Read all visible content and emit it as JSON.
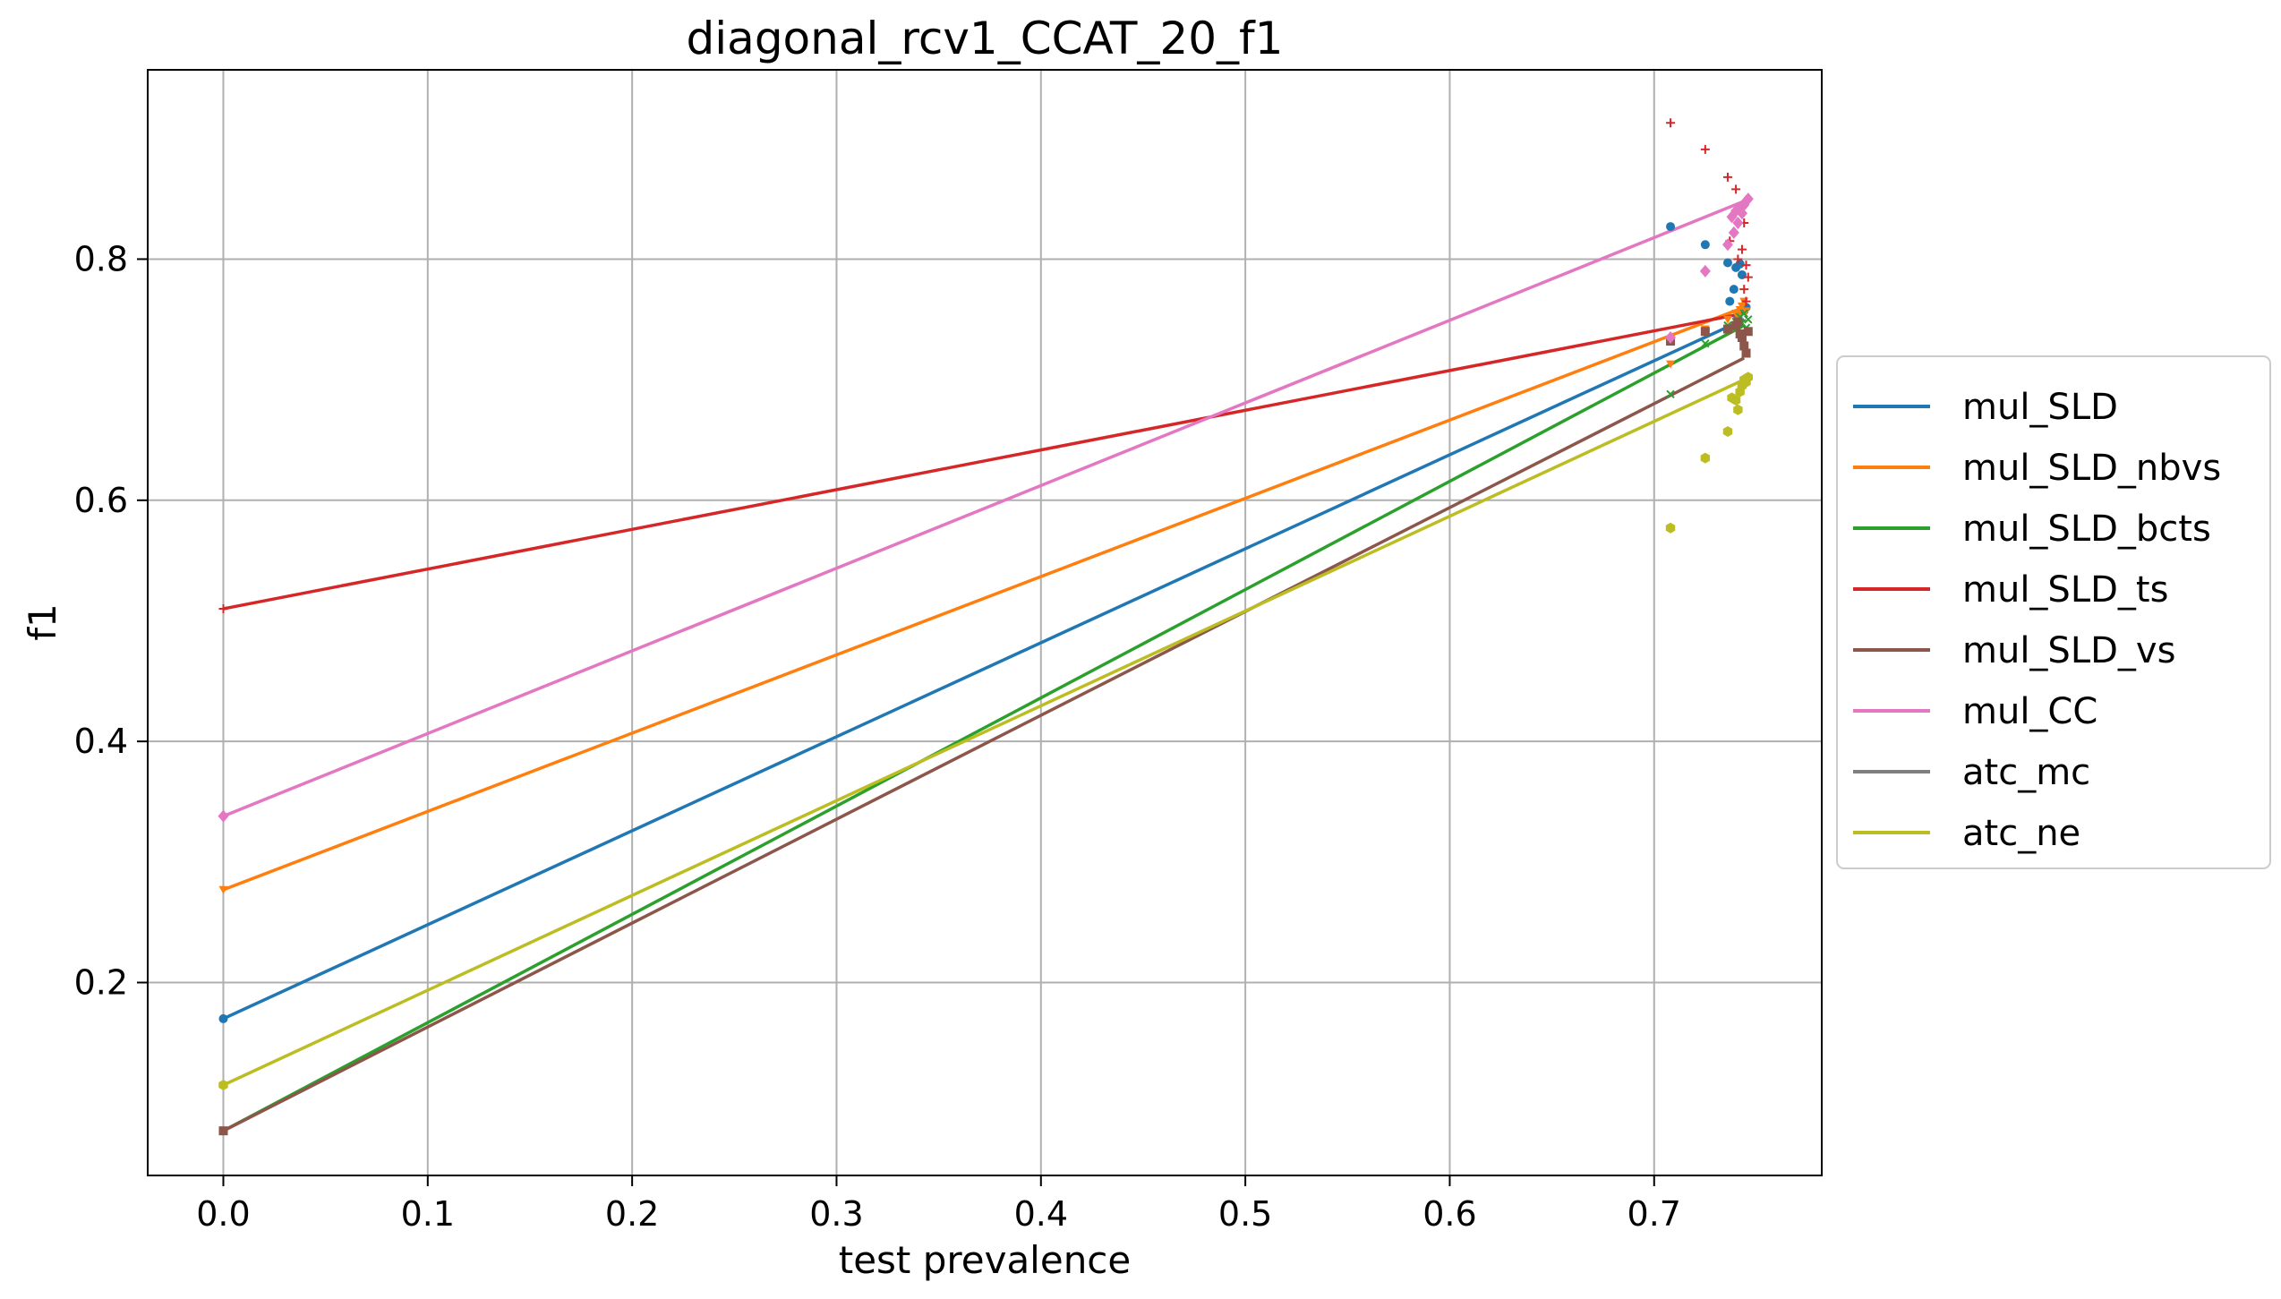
{
  "chart_data": {
    "type": "line",
    "title": "diagonal_rcv1_CCAT_20_f1",
    "xlabel": "test prevalence",
    "ylabel": "f1",
    "xlim": [
      -0.037,
      0.782
    ],
    "ylim": [
      0.04,
      0.957
    ],
    "xticks": [
      {
        "value": 0.0,
        "label": "0.0"
      },
      {
        "value": 0.1,
        "label": "0.1"
      },
      {
        "value": 0.2,
        "label": "0.2"
      },
      {
        "value": 0.3,
        "label": "0.3"
      },
      {
        "value": 0.4,
        "label": "0.4"
      },
      {
        "value": 0.5,
        "label": "0.5"
      },
      {
        "value": 0.6,
        "label": "0.6"
      },
      {
        "value": 0.7,
        "label": "0.7"
      }
    ],
    "yticks": [
      {
        "value": 0.2,
        "label": "0.2"
      },
      {
        "value": 0.4,
        "label": "0.4"
      },
      {
        "value": 0.6,
        "label": "0.6"
      },
      {
        "value": 0.8,
        "label": "0.8"
      }
    ],
    "grid": true,
    "legend_position": "center-right-outside",
    "series": [
      {
        "name": "mul_SLD",
        "color": "#1f77b4",
        "marker": "circle",
        "line": [
          [
            0.0,
            0.17
          ],
          [
            0.744,
            0.75
          ]
        ],
        "points": [
          [
            0.0,
            0.17
          ],
          [
            0.708,
            0.827
          ],
          [
            0.725,
            0.812
          ],
          [
            0.736,
            0.797
          ],
          [
            0.74,
            0.793
          ],
          [
            0.742,
            0.796
          ],
          [
            0.739,
            0.775
          ],
          [
            0.737,
            0.765
          ],
          [
            0.743,
            0.787
          ],
          [
            0.744,
            0.757
          ],
          [
            0.741,
            0.752
          ],
          [
            0.745,
            0.76
          ]
        ]
      },
      {
        "name": "mul_SLD_nbvs",
        "color": "#ff7f0e",
        "marker": "triangle-down",
        "line": [
          [
            0.0,
            0.277
          ],
          [
            0.744,
            0.76
          ]
        ],
        "points": [
          [
            0.0,
            0.277
          ],
          [
            0.708,
            0.713
          ],
          [
            0.725,
            0.742
          ],
          [
            0.736,
            0.75
          ],
          [
            0.74,
            0.755
          ],
          [
            0.742,
            0.758
          ],
          [
            0.743,
            0.761
          ],
          [
            0.744,
            0.765
          ],
          [
            0.745,
            0.757
          ],
          [
            0.741,
            0.752
          ]
        ]
      },
      {
        "name": "mul_SLD_bcts",
        "color": "#2ca02c",
        "marker": "x",
        "line": [
          [
            0.0,
            0.077
          ],
          [
            0.744,
            0.745
          ]
        ],
        "points": [
          [
            0.0,
            0.077
          ],
          [
            0.708,
            0.688
          ],
          [
            0.725,
            0.73
          ],
          [
            0.736,
            0.745
          ],
          [
            0.74,
            0.748
          ],
          [
            0.742,
            0.752
          ],
          [
            0.743,
            0.747
          ],
          [
            0.744,
            0.755
          ],
          [
            0.745,
            0.743
          ],
          [
            0.746,
            0.75
          ]
        ]
      },
      {
        "name": "mul_SLD_ts",
        "color": "#d62728",
        "marker": "plus",
        "line": [
          [
            0.0,
            0.51
          ],
          [
            0.744,
            0.755
          ]
        ],
        "points": [
          [
            0.0,
            0.51
          ],
          [
            0.708,
            0.913
          ],
          [
            0.725,
            0.891
          ],
          [
            0.736,
            0.868
          ],
          [
            0.74,
            0.858
          ],
          [
            0.742,
            0.842
          ],
          [
            0.744,
            0.83
          ],
          [
            0.743,
            0.808
          ],
          [
            0.741,
            0.8
          ],
          [
            0.745,
            0.795
          ],
          [
            0.746,
            0.785
          ],
          [
            0.744,
            0.775
          ],
          [
            0.745,
            0.765
          ],
          [
            0.737,
            0.815
          ]
        ]
      },
      {
        "name": "mul_SLD_vs",
        "color": "#8c564b",
        "marker": "square",
        "line": [
          [
            0.0,
            0.077
          ],
          [
            0.744,
            0.718
          ]
        ],
        "points": [
          [
            0.0,
            0.077
          ],
          [
            0.708,
            0.732
          ],
          [
            0.725,
            0.74
          ],
          [
            0.736,
            0.742
          ],
          [
            0.74,
            0.745
          ],
          [
            0.742,
            0.738
          ],
          [
            0.743,
            0.735
          ],
          [
            0.744,
            0.728
          ],
          [
            0.745,
            0.722
          ],
          [
            0.746,
            0.74
          ],
          [
            0.741,
            0.748
          ]
        ]
      },
      {
        "name": "mul_CC",
        "color": "#e377c2",
        "marker": "diamond",
        "line": [
          [
            0.0,
            0.338
          ],
          [
            0.744,
            0.848
          ]
        ],
        "points": [
          [
            0.0,
            0.338
          ],
          [
            0.708,
            0.735
          ],
          [
            0.725,
            0.79
          ],
          [
            0.736,
            0.812
          ],
          [
            0.738,
            0.835
          ],
          [
            0.74,
            0.84
          ],
          [
            0.742,
            0.842
          ],
          [
            0.743,
            0.838
          ],
          [
            0.744,
            0.845
          ],
          [
            0.745,
            0.848
          ],
          [
            0.746,
            0.85
          ],
          [
            0.741,
            0.83
          ],
          [
            0.739,
            0.822
          ]
        ]
      },
      {
        "name": "atc_mc",
        "color": "#7f7f7f",
        "marker": "none",
        "line": [],
        "points": []
      },
      {
        "name": "atc_ne",
        "color": "#bcbd22",
        "marker": "hexagon",
        "line": [
          [
            0.0,
            0.115
          ],
          [
            0.744,
            0.7
          ]
        ],
        "points": [
          [
            0.0,
            0.115
          ],
          [
            0.708,
            0.577
          ],
          [
            0.725,
            0.635
          ],
          [
            0.736,
            0.657
          ],
          [
            0.738,
            0.685
          ],
          [
            0.74,
            0.683
          ],
          [
            0.741,
            0.675
          ],
          [
            0.742,
            0.69
          ],
          [
            0.743,
            0.695
          ],
          [
            0.744,
            0.7
          ],
          [
            0.745,
            0.698
          ],
          [
            0.746,
            0.702
          ]
        ]
      }
    ]
  }
}
